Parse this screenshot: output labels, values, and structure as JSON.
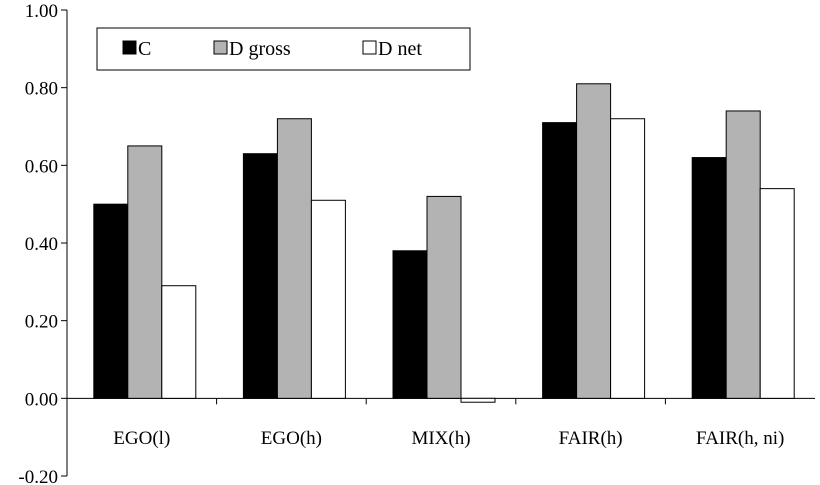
{
  "chart_data": {
    "type": "bar",
    "categories": [
      "EGO(l)",
      "EGO(h)",
      "MIX(h)",
      "FAIR(h)",
      "FAIR(h, ni)"
    ],
    "series": [
      {
        "name": "C",
        "color": "#000000",
        "values": [
          0.5,
          0.63,
          0.38,
          0.71,
          0.62
        ]
      },
      {
        "name": "D gross",
        "color": "#b3b3b3",
        "values": [
          0.65,
          0.72,
          0.52,
          0.81,
          0.74
        ]
      },
      {
        "name": "D net",
        "color": "#ffffff",
        "values": [
          0.29,
          0.51,
          -0.01,
          0.72,
          0.54
        ]
      }
    ],
    "ylim": [
      -0.2,
      1.0
    ],
    "yticks": [
      "1.00",
      "0.80",
      "0.60",
      "0.40",
      "0.20",
      "0.00",
      "-0.20"
    ],
    "ytick_values": [
      1.0,
      0.8,
      0.6,
      0.4,
      0.2,
      0.0,
      -0.2
    ],
    "legend_position": "top-left",
    "grid": false
  }
}
